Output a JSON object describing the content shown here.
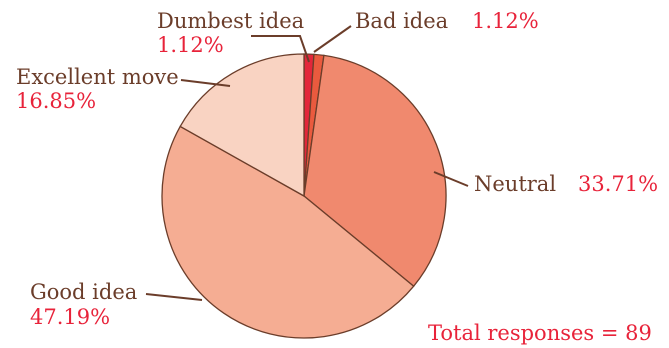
{
  "chart_data": {
    "type": "pie",
    "slices": [
      {
        "label": "Dumbest idea",
        "percent_text": "1.12%",
        "value": 1.12,
        "color": "#e3263a"
      },
      {
        "label": "Bad idea",
        "percent_text": "1.12%",
        "value": 1.12,
        "color": "#ea5a3e"
      },
      {
        "label": "Neutral",
        "percent_text": "33.71%",
        "value": 33.71,
        "color": "#f0896e"
      },
      {
        "label": "Good idea",
        "percent_text": "47.19%",
        "value": 47.19,
        "color": "#f5ad93"
      },
      {
        "label": "Excellent move",
        "percent_text": "16.85%",
        "value": 16.85,
        "color": "#f9d3c2"
      }
    ],
    "annotation": "Total responses = 89"
  }
}
